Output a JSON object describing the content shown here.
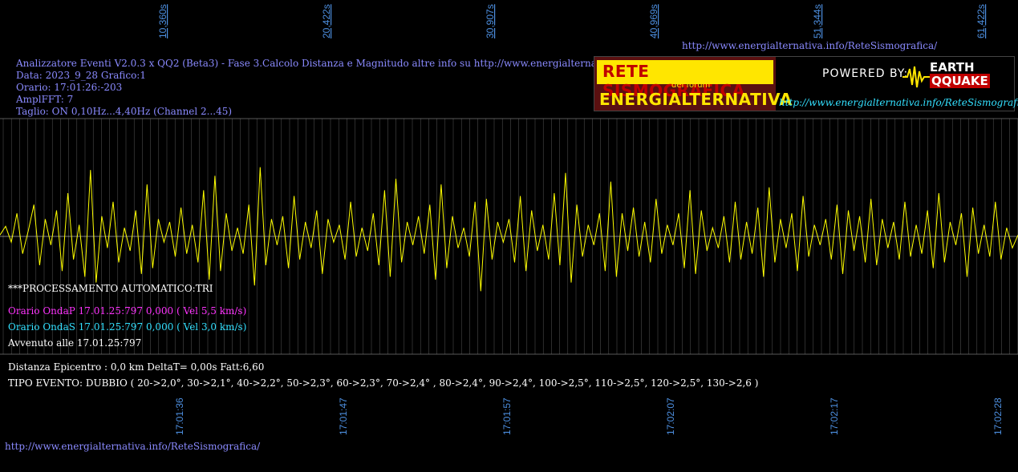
{
  "header": {
    "url_top": "http://www.energialternativa.info/ReteSismografica/",
    "line1": "Analizzatore Eventi V2.0.3 x QQ2 (Beta3) - Fase 3.Calcolo Distanza e Magnitudo altre info su http://www.energialternativa.info/ReteSism",
    "line2": "Data: 2023_9_28 Grafico:1",
    "line3": "Orario: 17:01:26:-203",
    "line4": "AmplFFT: 7",
    "line5": "Taglio: ON 0,10Hz...4,40Hz       (Channel 2...45)"
  },
  "logo": {
    "title": "RETE SISMOGRAFICA",
    "subtitle": "del forum",
    "brand": "ENERGIALTERNATIVA",
    "powered": "POWERED BY:",
    "earth": "EARTH",
    "quake": "QQUAKE",
    "url": "http://www.energialternativa.info/ReteSismografica"
  },
  "processing": {
    "auto": "***PROCESSAMENTO AUTOMATICO:TRI",
    "onda_p": "Orario OndaP 17.01.25:797  0,000 ( Vel 5,5 km/s)",
    "onda_s": "Orario OndaS 17.01.25:797  0,000 ( Vel 3,0 km/s)",
    "avvenuto": "Avvenuto alle 17.01.25:797",
    "distanza": "Distanza Epicentro : 0,0 km DeltaT= 0,00s  Fatt:6,60",
    "tipo": "TIPO EVENTO: DUBBIO ( 20->2,0°, 30->2,1°, 40->2,2°, 50->2,3°, 60->2,3°, 70->2,4° , 80->2,4°, 90->2,4°, 100->2,5°, 110->2,5°, 120->2,5°, 130->2,6 )"
  },
  "footer": {
    "url_bottom": "http://www.energialternativa.info/ReteSismografica/"
  },
  "colors": {
    "background": "#000000",
    "trace": "#ffff00",
    "grid": "#5a5a5a",
    "tick_label": "#4d8fe0",
    "header_text": "#8a8aff",
    "onda_p": "#ff33ff",
    "onda_s": "#33e0ff"
  },
  "chart_data": {
    "type": "line",
    "top_axis_ticks": [
      "10,360s",
      "20,422s",
      "30,907s",
      "40,969s",
      "51,344s",
      "61,422s"
    ],
    "bottom_axis_ticks": [
      "17:01:36",
      "17:01:47",
      "17:01:57",
      "17:02:07",
      "17:02:17",
      "17:02:28"
    ],
    "grid": true,
    "series": [
      {
        "values": [
          0.05,
          0.35,
          -0.2,
          0.8,
          -0.6,
          0.2,
          1.1,
          -1.0,
          0.6,
          -0.3,
          0.9,
          -1.2,
          1.5,
          -0.8,
          0.4,
          -1.4,
          2.3,
          -1.6,
          0.7,
          -0.4,
          1.2,
          -0.9,
          0.3,
          -0.5,
          0.9,
          -1.3,
          1.8,
          -1.1,
          0.6,
          -0.2,
          0.5,
          -0.7,
          1.0,
          -0.6,
          0.4,
          -0.9,
          1.6,
          -1.5,
          2.1,
          -1.2,
          0.8,
          -0.5,
          0.3,
          -0.6,
          1.1,
          -1.7,
          2.4,
          -1.0,
          0.6,
          -0.3,
          0.7,
          -1.1,
          1.4,
          -0.8,
          0.5,
          -0.4,
          0.9,
          -1.3,
          0.6,
          -0.2,
          0.4,
          -0.8,
          1.2,
          -0.7,
          0.3,
          -0.5,
          0.8,
          -1.0,
          1.6,
          -1.4,
          2.0,
          -0.9,
          0.5,
          -0.3,
          0.7,
          -0.6,
          1.1,
          -1.5,
          1.8,
          -1.1,
          0.7,
          -0.4,
          0.3,
          -0.7,
          1.2,
          -1.9,
          1.3,
          -0.8,
          0.5,
          -0.2,
          0.6,
          -0.9,
          1.4,
          -1.2,
          0.9,
          -0.5,
          0.4,
          -0.8,
          1.5,
          -1.0,
          2.2,
          -1.6,
          1.1,
          -0.7,
          0.4,
          -0.3,
          0.8,
          -1.2,
          1.9,
          -1.4,
          0.8,
          -0.5,
          1.0,
          -0.7,
          0.5,
          -0.9,
          1.3,
          -0.6,
          0.4,
          -0.3,
          0.8,
          -1.1,
          1.6,
          -1.3,
          0.9,
          -0.5,
          0.3,
          -0.4,
          0.7,
          -0.9,
          1.2,
          -0.8,
          0.5,
          -0.6,
          1.0,
          -1.4,
          1.7,
          -0.9,
          0.6,
          -0.4,
          0.8,
          -1.2,
          1.4,
          -0.7,
          0.4,
          -0.3,
          0.6,
          -0.8,
          1.1,
          -1.3,
          0.9,
          -0.5,
          0.7,
          -0.9,
          1.3,
          -1.0,
          0.6,
          -0.4,
          0.5,
          -0.8,
          1.2,
          -0.7,
          0.4,
          -0.6,
          0.9,
          -1.1,
          1.5,
          -0.9,
          0.5,
          -0.3,
          0.8,
          -1.4,
          1.0,
          -0.6,
          0.4,
          -0.7,
          1.2,
          -0.8,
          0.3,
          -0.4,
          0.05
        ]
      }
    ]
  }
}
